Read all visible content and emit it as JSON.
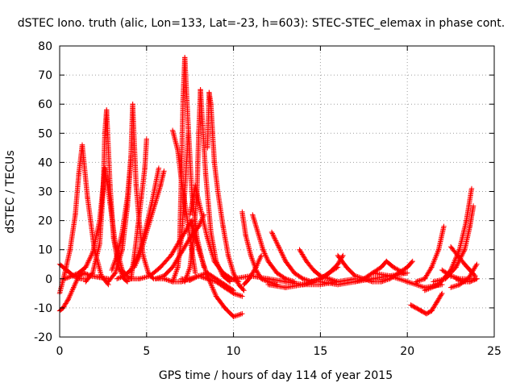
{
  "chart_data": {
    "type": "scatter",
    "title": "dSTEC Iono. truth (alic, Lon=133, Lat=-23, h=603): STEC-STEC_elemax in phase cont.",
    "xlabel": "GPS time / hours of day 114 of year 2015",
    "ylabel": "dSTEC  / TECUs",
    "xlim": [
      0,
      25
    ],
    "ylim": [
      -20,
      80
    ],
    "xticks": [
      0,
      5,
      10,
      15,
      20,
      25
    ],
    "yticks": [
      -20,
      -10,
      0,
      10,
      20,
      30,
      40,
      50,
      60,
      70,
      80
    ],
    "grid": true,
    "marker": "+",
    "color": "#ff0000",
    "series": [
      {
        "x": [
          0.0,
          0.3,
          0.6,
          0.9,
          1.1,
          1.3
        ],
        "y": [
          -5,
          2,
          10,
          22,
          36,
          46
        ]
      },
      {
        "x": [
          1.3,
          1.6,
          2.0,
          2.4,
          2.8
        ],
        "y": [
          46,
          28,
          10,
          1,
          -2
        ]
      },
      {
        "x": [
          0.0,
          0.4,
          0.8,
          1.2,
          1.6
        ],
        "y": [
          5,
          3,
          1,
          0,
          0
        ]
      },
      {
        "x": [
          0.0,
          0.2,
          0.5,
          0.8,
          1.1,
          1.4,
          1.8,
          2.3,
          2.8
        ],
        "y": [
          -11,
          -10,
          -7,
          -3,
          1,
          2,
          1,
          0.5,
          0
        ]
      },
      {
        "x": [
          0.3,
          0.7,
          1.1,
          1.5,
          1.9,
          2.3,
          2.6
        ],
        "y": [
          0,
          1,
          2,
          4,
          9,
          20,
          38
        ]
      },
      {
        "x": [
          2.6,
          2.9,
          3.2,
          3.6,
          4.0
        ],
        "y": [
          38,
          26,
          12,
          3,
          0
        ]
      },
      {
        "x": [
          1.5,
          1.9,
          2.3,
          2.5,
          2.6,
          2.7
        ],
        "y": [
          -1,
          2,
          12,
          30,
          50,
          58
        ]
      },
      {
        "x": [
          2.7,
          2.9,
          3.1,
          3.4,
          3.7,
          3.9
        ],
        "y": [
          58,
          32,
          14,
          4,
          0,
          -1
        ]
      },
      {
        "x": [
          2.8,
          3.2,
          3.6,
          3.9,
          4.1
        ],
        "y": [
          -1,
          2,
          10,
          25,
          41
        ]
      },
      {
        "x": [
          3.0,
          3.3,
          3.6,
          3.9,
          4.1,
          4.2
        ],
        "y": [
          3,
          8,
          16,
          28,
          42,
          60
        ]
      },
      {
        "x": [
          4.2,
          4.4,
          4.6,
          4.8,
          5.1,
          5.4
        ],
        "y": [
          60,
          32,
          18,
          8,
          2,
          0
        ]
      },
      {
        "x": [
          4.1,
          4.3,
          4.5,
          4.7,
          4.9,
          5.0
        ],
        "y": [
          0,
          8,
          18,
          28,
          38,
          48
        ]
      },
      {
        "x": [
          4.3,
          4.6,
          4.9,
          5.2,
          5.5,
          5.8,
          6.0
        ],
        "y": [
          4,
          8,
          14,
          20,
          26,
          32,
          37
        ]
      },
      {
        "x": [
          3.3,
          3.7,
          4.1,
          4.5,
          4.9,
          5.3,
          5.7
        ],
        "y": [
          0,
          1,
          3,
          8,
          16,
          26,
          38
        ]
      },
      {
        "x": [
          4.0,
          4.6,
          5.2,
          5.8,
          6.4,
          7.0,
          7.6
        ],
        "y": [
          0,
          0,
          1,
          4,
          8,
          14,
          20
        ]
      },
      {
        "x": [
          5.5,
          6.0,
          6.5,
          7.0,
          7.5,
          8.0,
          8.3
        ],
        "y": [
          0,
          1,
          4,
          9,
          14,
          18,
          22
        ]
      },
      {
        "x": [
          6.5,
          6.8,
          7.0,
          7.2,
          7.4
        ],
        "y": [
          -1,
          4,
          14,
          30,
          50
        ]
      },
      {
        "x": [
          6.5,
          6.8,
          7.0,
          7.3,
          7.6,
          7.8
        ],
        "y": [
          51,
          44,
          34,
          22,
          10,
          2
        ]
      },
      {
        "x": [
          6.9,
          7.0,
          7.1,
          7.2,
          7.4,
          7.6,
          7.9,
          8.3
        ],
        "y": [
          12,
          35,
          62,
          76,
          52,
          30,
          14,
          4
        ]
      },
      {
        "x": [
          7.2,
          7.5,
          7.7,
          7.9,
          8.0,
          8.1
        ],
        "y": [
          -1,
          4,
          14,
          30,
          50,
          65
        ]
      },
      {
        "x": [
          8.1,
          8.4,
          8.7,
          9.0,
          9.4,
          9.8
        ],
        "y": [
          65,
          36,
          16,
          6,
          1,
          -1
        ]
      },
      {
        "x": [
          7.5,
          7.8,
          8.1,
          8.5,
          8.9,
          9.4,
          9.9,
          10.3
        ],
        "y": [
          22,
          32,
          24,
          14,
          6,
          2,
          0,
          -1
        ]
      },
      {
        "x": [
          8.5,
          8.6,
          8.7,
          8.8,
          8.9,
          9.1
        ],
        "y": [
          45,
          64,
          60,
          50,
          40,
          30
        ]
      },
      {
        "x": [
          9.1,
          9.4,
          9.7,
          10.0,
          10.3,
          10.6
        ],
        "y": [
          30,
          18,
          8,
          2,
          -2,
          -4
        ]
      },
      {
        "x": [
          7.5,
          8.0,
          8.5,
          9.0,
          9.5,
          10.0,
          10.5
        ],
        "y": [
          20,
          10,
          1,
          -6,
          -10,
          -13,
          -12
        ]
      },
      {
        "x": [
          7.0,
          7.5,
          8.0,
          8.5,
          9.0,
          9.5,
          10.0,
          10.5
        ],
        "y": [
          0,
          -0.5,
          1,
          0,
          -1,
          -3,
          -5,
          -6
        ]
      },
      {
        "x": [
          5.5,
          6.0,
          6.5,
          7.0,
          7.5,
          8.0,
          8.5,
          9.0,
          9.5,
          10.0
        ],
        "y": [
          0,
          0,
          -1,
          -1,
          0,
          1,
          2,
          0,
          -2,
          -4
        ]
      },
      {
        "x": [
          10.5,
          10.7,
          11.0,
          11.3,
          11.6,
          12.0,
          12.5
        ],
        "y": [
          23,
          15,
          8,
          3,
          0,
          -1,
          -2
        ]
      },
      {
        "x": [
          11.1,
          11.4,
          11.7,
          12.0,
          12.5,
          13.0,
          13.5
        ],
        "y": [
          22,
          16,
          10,
          6,
          2,
          0,
          -1
        ]
      },
      {
        "x": [
          10.6,
          10.9,
          11.3,
          11.6
        ],
        "y": [
          -2,
          0,
          4,
          8
        ]
      },
      {
        "x": [
          12.2,
          12.6,
          13.0,
          13.5,
          14.0,
          14.5
        ],
        "y": [
          16,
          11,
          6,
          2,
          0,
          -1
        ]
      },
      {
        "x": [
          13.8,
          14.2,
          14.6,
          15.0,
          15.5,
          16.0
        ],
        "y": [
          10,
          6,
          3,
          1,
          0,
          -1
        ]
      },
      {
        "x": [
          10.0,
          11.0,
          12.0,
          13.0,
          14.0,
          15.0,
          16.0,
          17.0
        ],
        "y": [
          0,
          1,
          0,
          -1,
          -2,
          -2,
          -1,
          0
        ]
      },
      {
        "x": [
          12.0,
          13.0,
          14.0,
          15.0,
          16.0
        ],
        "y": [
          -2,
          -3,
          -2,
          0,
          4
        ]
      },
      {
        "x": [
          14.0,
          14.5,
          15.0,
          15.5,
          16.0,
          16.3
        ],
        "y": [
          -2,
          -1,
          0,
          2,
          5,
          8
        ]
      },
      {
        "x": [
          16.0,
          16.5,
          17.0,
          17.5,
          18.0,
          18.5
        ],
        "y": [
          8,
          4,
          1,
          0,
          -1,
          -1
        ]
      },
      {
        "x": [
          15.0,
          16.0,
          17.0,
          18.0,
          19.0,
          20.0
        ],
        "y": [
          -1,
          -2,
          -1,
          0,
          1,
          2
        ]
      },
      {
        "x": [
          17.0,
          17.5,
          18.0,
          18.5,
          18.8,
          19.2,
          19.8
        ],
        "y": [
          -1,
          0,
          2,
          4,
          6,
          4,
          2
        ]
      },
      {
        "x": [
          18.5,
          19.0,
          19.5,
          20.0,
          20.3
        ],
        "y": [
          -1,
          0,
          2,
          4,
          6
        ]
      },
      {
        "x": [
          18.0,
          19.0,
          20.0,
          21.0,
          22.0
        ],
        "y": [
          2,
          1,
          -1,
          -3,
          -2
        ]
      },
      {
        "x": [
          20.2,
          20.5,
          20.8,
          21.1,
          21.4,
          21.7,
          22.0
        ],
        "y": [
          -9,
          -10,
          -11,
          -12,
          -11,
          -8,
          -5
        ]
      },
      {
        "x": [
          20.5,
          21.0,
          21.4,
          21.8,
          22.1
        ],
        "y": [
          -1,
          0,
          4,
          10,
          18
        ]
      },
      {
        "x": [
          22.0,
          22.5,
          23.0,
          23.5,
          24.0
        ],
        "y": [
          3,
          1,
          0,
          0,
          0
        ]
      },
      {
        "x": [
          22.5,
          22.9,
          23.3,
          23.6,
          23.9
        ],
        "y": [
          11,
          8,
          5,
          3,
          1
        ]
      },
      {
        "x": [
          21.0,
          21.8,
          22.5,
          23.0,
          23.4,
          23.7
        ],
        "y": [
          -4,
          -2,
          3,
          10,
          20,
          31
        ]
      },
      {
        "x": [
          21.5,
          22.2,
          22.8,
          23.3,
          23.6,
          23.8
        ],
        "y": [
          -1,
          0,
          4,
          10,
          18,
          25
        ]
      },
      {
        "x": [
          22.5,
          23.0,
          23.5,
          24.0
        ],
        "y": [
          -3,
          -2,
          0,
          5
        ]
      },
      {
        "x": [
          22.8,
          23.2,
          23.6,
          24.0
        ],
        "y": [
          0,
          -1,
          -1,
          0
        ]
      }
    ]
  }
}
